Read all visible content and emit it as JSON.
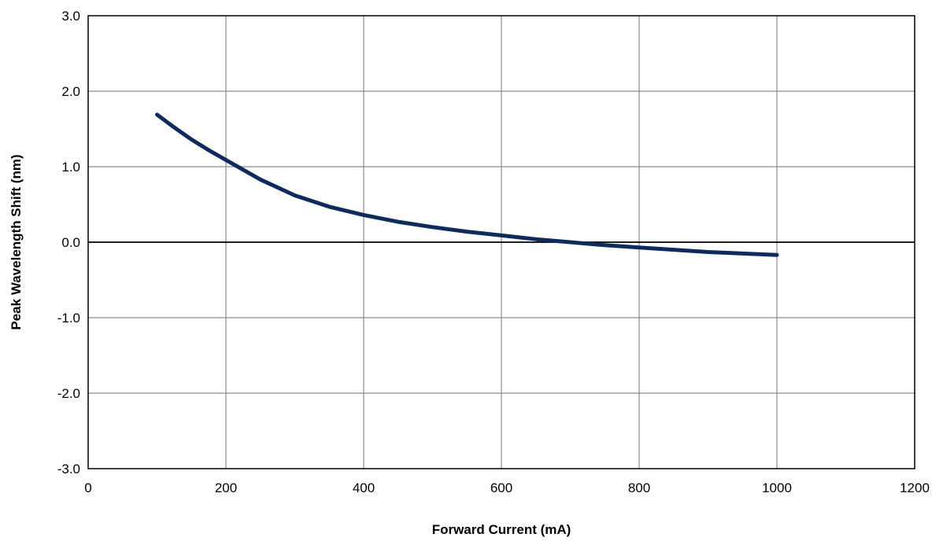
{
  "chart_data": {
    "type": "line",
    "title": "",
    "xlabel": "Forward Current (mA)",
    "ylabel": "Peak Wavelength Shift (nm)",
    "xlim": [
      0,
      1200
    ],
    "ylim": [
      -3.0,
      3.0
    ],
    "x_ticks": [
      0,
      200,
      400,
      600,
      800,
      1000,
      1200
    ],
    "y_ticks": [
      3.0,
      2.0,
      1.0,
      0.0,
      -1.0,
      -2.0,
      -3.0
    ],
    "x_tick_labels": [
      "0",
      "200",
      "400",
      "600",
      "800",
      "1000",
      "1200"
    ],
    "y_tick_labels": [
      "3.0",
      "2.0",
      "1.0",
      "0.0",
      "-1.0",
      "-2.0",
      "-3.0"
    ],
    "grid": true,
    "legend": "none",
    "series": [
      {
        "color": "#0f2a5c",
        "x": [
          100,
          125,
          150,
          175,
          200,
          250,
          300,
          350,
          400,
          450,
          500,
          550,
          600,
          650,
          700,
          750,
          800,
          850,
          900,
          950,
          1000
        ],
        "y": [
          1.69,
          1.52,
          1.36,
          1.22,
          1.09,
          0.83,
          0.62,
          0.47,
          0.36,
          0.27,
          0.2,
          0.14,
          0.09,
          0.04,
          0.0,
          -0.04,
          -0.07,
          -0.1,
          -0.13,
          -0.15,
          -0.17
        ]
      }
    ]
  }
}
